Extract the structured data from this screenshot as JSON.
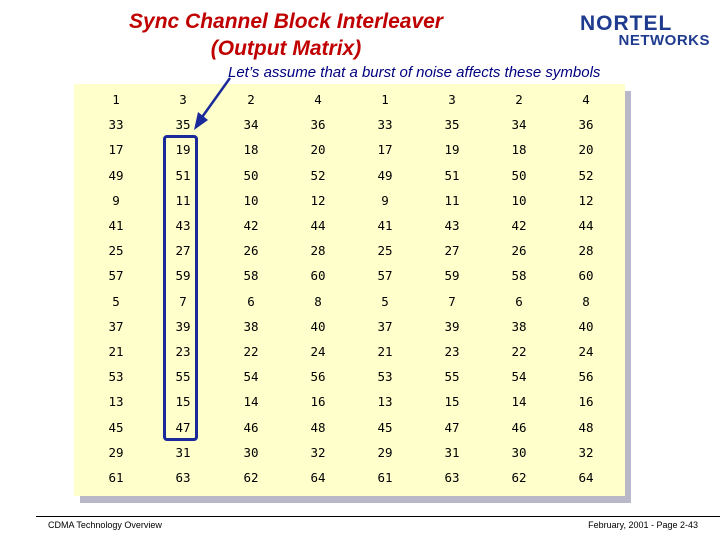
{
  "title_line1": "Sync Channel Block Interleaver",
  "title_line2": "(Output Matrix)",
  "logo": {
    "line1": "NORTEL",
    "line2": "NETWORKS"
  },
  "subtitle": "Let’s assume that a burst of noise affects these symbols",
  "matrix": [
    [
      "1",
      "3",
      "2",
      "4",
      "1",
      "3",
      "2",
      "4"
    ],
    [
      "33",
      "35",
      "34",
      "36",
      "33",
      "35",
      "34",
      "36"
    ],
    [
      "17",
      "19",
      "18",
      "20",
      "17",
      "19",
      "18",
      "20"
    ],
    [
      "49",
      "51",
      "50",
      "52",
      "49",
      "51",
      "50",
      "52"
    ],
    [
      "9",
      "11",
      "10",
      "12",
      "9",
      "11",
      "10",
      "12"
    ],
    [
      "41",
      "43",
      "42",
      "44",
      "41",
      "43",
      "42",
      "44"
    ],
    [
      "25",
      "27",
      "26",
      "28",
      "25",
      "27",
      "26",
      "28"
    ],
    [
      "57",
      "59",
      "58",
      "60",
      "57",
      "59",
      "58",
      "60"
    ],
    [
      "5",
      "7",
      "6",
      "8",
      "5",
      "7",
      "6",
      "8"
    ],
    [
      "37",
      "39",
      "38",
      "40",
      "37",
      "39",
      "38",
      "40"
    ],
    [
      "21",
      "23",
      "22",
      "24",
      "21",
      "23",
      "22",
      "24"
    ],
    [
      "53",
      "55",
      "54",
      "56",
      "53",
      "55",
      "54",
      "56"
    ],
    [
      "13",
      "15",
      "14",
      "16",
      "13",
      "15",
      "14",
      "16"
    ],
    [
      "45",
      "47",
      "46",
      "48",
      "45",
      "47",
      "46",
      "48"
    ],
    [
      "29",
      "31",
      "30",
      "32",
      "29",
      "31",
      "30",
      "32"
    ],
    [
      "61",
      "63",
      "62",
      "64",
      "61",
      "63",
      "62",
      "64"
    ]
  ],
  "footer": {
    "left": "CDMA Technology Overview",
    "right": "February, 2001 -  Page 2-43"
  },
  "colors": {
    "title": "#c00000",
    "subtitle": "#000080",
    "panel": "#ffffcc",
    "highlight": "#1a2a9a"
  }
}
